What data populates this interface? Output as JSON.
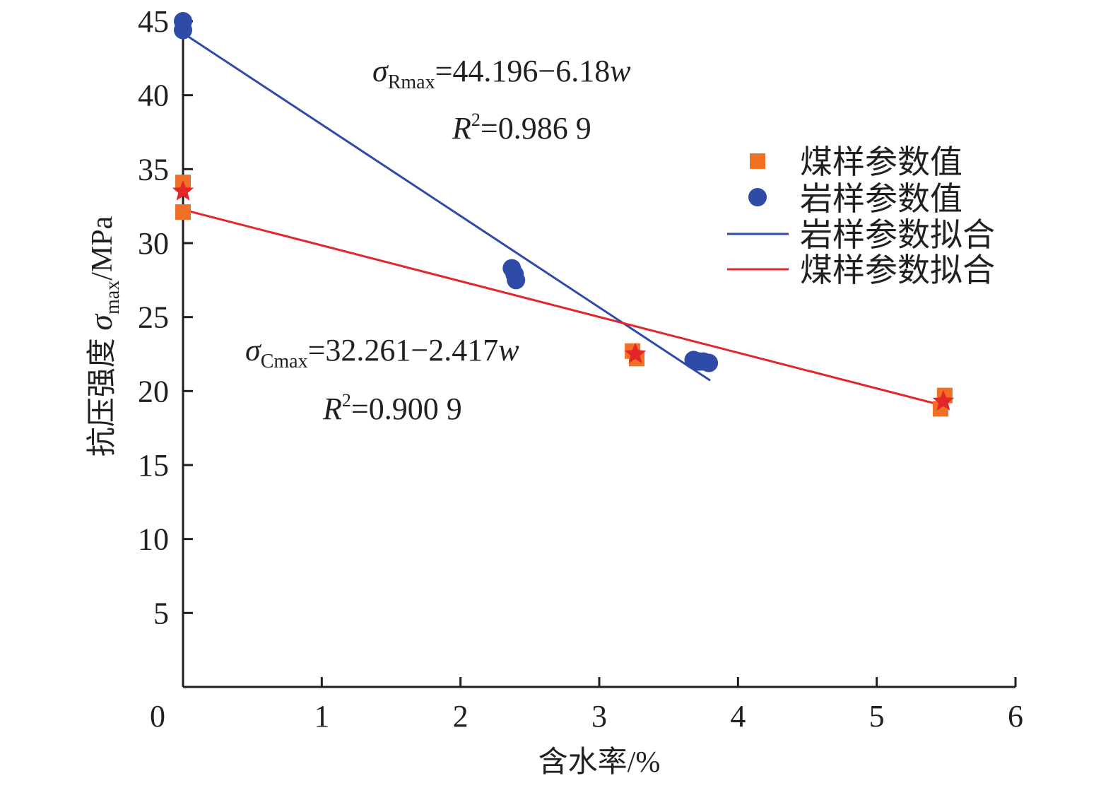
{
  "chart_data": {
    "type": "scatter",
    "xlabel": "含水率/%",
    "ylabel": {
      "prefix": "抗压强度 ",
      "symbol": "σ",
      "subscript": "max",
      "suffix": "/MPa"
    },
    "xlim": [
      0,
      6
    ],
    "ylim": [
      0,
      45
    ],
    "x_ticks": [
      0,
      1,
      2,
      3,
      4,
      5,
      6
    ],
    "y_ticks": [
      5,
      10,
      15,
      20,
      25,
      30,
      35,
      40,
      45
    ],
    "grid": false,
    "legend_position": "right",
    "series": [
      {
        "name": "煤样参数值",
        "kind": "points",
        "marker": "square",
        "color": "#f07025",
        "points": [
          [
            0.0,
            34.1
          ],
          [
            0.0,
            32.1
          ],
          [
            3.24,
            22.7
          ],
          [
            3.27,
            22.2
          ],
          [
            5.46,
            18.8
          ],
          [
            5.49,
            19.7
          ]
        ]
      },
      {
        "name": "岩样参数值",
        "kind": "points",
        "marker": "circle",
        "color": "#2f4ba8",
        "points": [
          [
            0.0,
            45.0
          ],
          [
            0.0,
            44.4
          ],
          [
            2.37,
            28.3
          ],
          [
            2.39,
            27.9
          ],
          [
            2.4,
            27.5
          ],
          [
            3.68,
            22.1
          ],
          [
            3.72,
            22.0
          ],
          [
            3.75,
            22.0
          ],
          [
            3.79,
            21.9
          ]
        ]
      },
      {
        "name": "岩样参数拟合",
        "kind": "line",
        "color": "#2f4ba8",
        "intercept": 44.196,
        "slope": -6.18,
        "x_range": [
          0,
          3.8
        ]
      },
      {
        "name": "煤样参数拟合",
        "kind": "line",
        "color": "#e3262a",
        "intercept": 32.261,
        "slope": -2.417,
        "x_range": [
          0,
          5.5
        ]
      },
      {
        "name": "",
        "kind": "points",
        "marker": "star",
        "color": "#e3262a",
        "points": [
          [
            0.0,
            33.5
          ],
          [
            3.26,
            22.5
          ],
          [
            5.48,
            19.3
          ]
        ]
      }
    ],
    "annotations": [
      {
        "symbol": "σ",
        "subscript": "Rmax",
        "equation": "=44.196−6.18",
        "variable": "w",
        "r2_symbol": "R",
        "r2_sup": "2",
        "r2_value": "=0.986 9"
      },
      {
        "symbol": "σ",
        "subscript": "Cmax",
        "equation": "=32.261−2.417",
        "variable": "w",
        "r2_symbol": "R",
        "r2_sup": "2",
        "r2_value": "=0.900 9"
      }
    ]
  }
}
